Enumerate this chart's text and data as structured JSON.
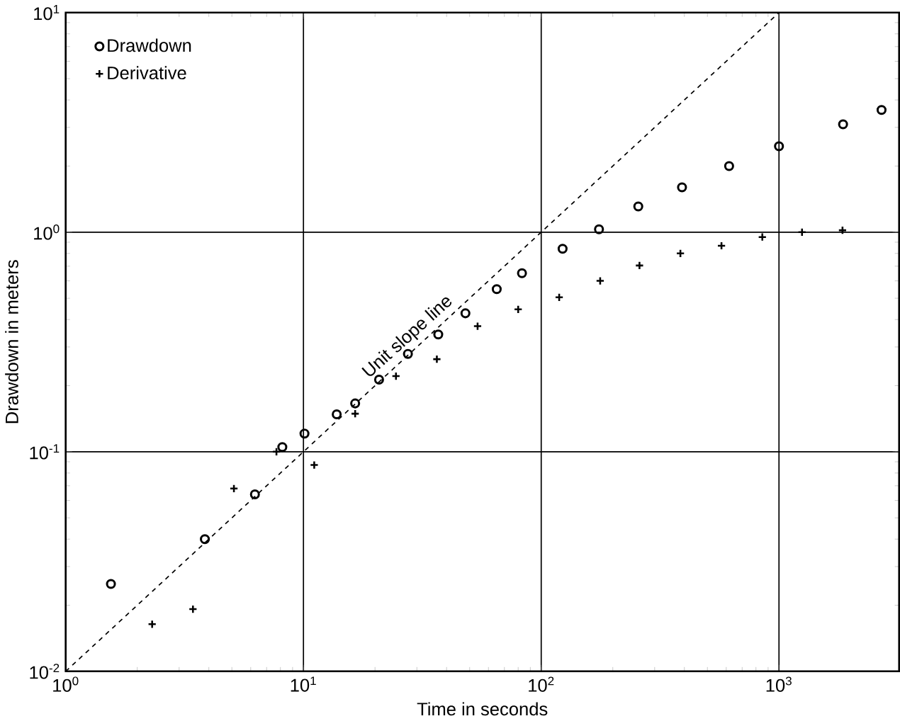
{
  "chart_data": {
    "type": "scatter",
    "xlabel": "Time in seconds",
    "ylabel": "Drawdown in meters",
    "log": "xy",
    "grid": true,
    "legend": "top left",
    "xlim": [
      1,
      3200
    ],
    "ylim": [
      0.01,
      10
    ],
    "xticks": [
      {
        "value": 1,
        "label": "10$^{0}$"
      },
      {
        "value": 10,
        "label": "10$^{1}$"
      },
      {
        "value": 100,
        "label": "10$^{2}$"
      },
      {
        "value": 1000,
        "label": "10$^{3}$"
      }
    ],
    "yticks": [
      {
        "value": 0.01,
        "label": "10$^{-2}$"
      },
      {
        "value": 0.1,
        "label": "10$^{-1}$"
      },
      {
        "value": 1,
        "label": "10$^{0}$"
      },
      {
        "value": 10,
        "label": "10$^{1}$"
      }
    ],
    "annotations": [
      {
        "text": "Unit slope line",
        "x": 30,
        "y": 0.3
      }
    ],
    "series": [
      {
        "name": "Drawdown",
        "color": "#000000",
        "marker": "circle",
        "x": [
          1.55,
          3.85,
          6.25,
          8.15,
          10.1,
          13.8,
          16.5,
          20.8,
          27.5,
          36.9,
          48,
          65,
          83,
          123,
          175,
          256,
          391,
          617,
          1000,
          1860,
          2700
        ],
        "values": [
          0.025,
          0.04,
          0.064,
          0.105,
          0.121,
          0.148,
          0.166,
          0.213,
          0.279,
          0.342,
          0.427,
          0.55,
          0.65,
          0.84,
          1.03,
          1.31,
          1.6,
          2.0,
          2.46,
          3.1,
          3.6
        ]
      },
      {
        "name": "Derivative",
        "color": "#000000",
        "marker": "cross",
        "x": [
          2.31,
          3.43,
          5.1,
          7.7,
          11.1,
          16.5,
          24.5,
          36.4,
          54,
          80,
          119,
          177,
          259,
          385,
          573,
          851,
          1250,
          1850
        ],
        "values": [
          0.0164,
          0.0192,
          0.068,
          0.1,
          0.087,
          0.149,
          0.221,
          0.264,
          0.373,
          0.445,
          0.505,
          0.6,
          0.705,
          0.8,
          0.867,
          0.95,
          1.0,
          1.02
        ]
      },
      {
        "type": "line",
        "color": "#000000",
        "line_style": "dashed",
        "marker": "none",
        "x": [
          1,
          1000
        ],
        "values": [
          0.01,
          10
        ]
      }
    ]
  }
}
